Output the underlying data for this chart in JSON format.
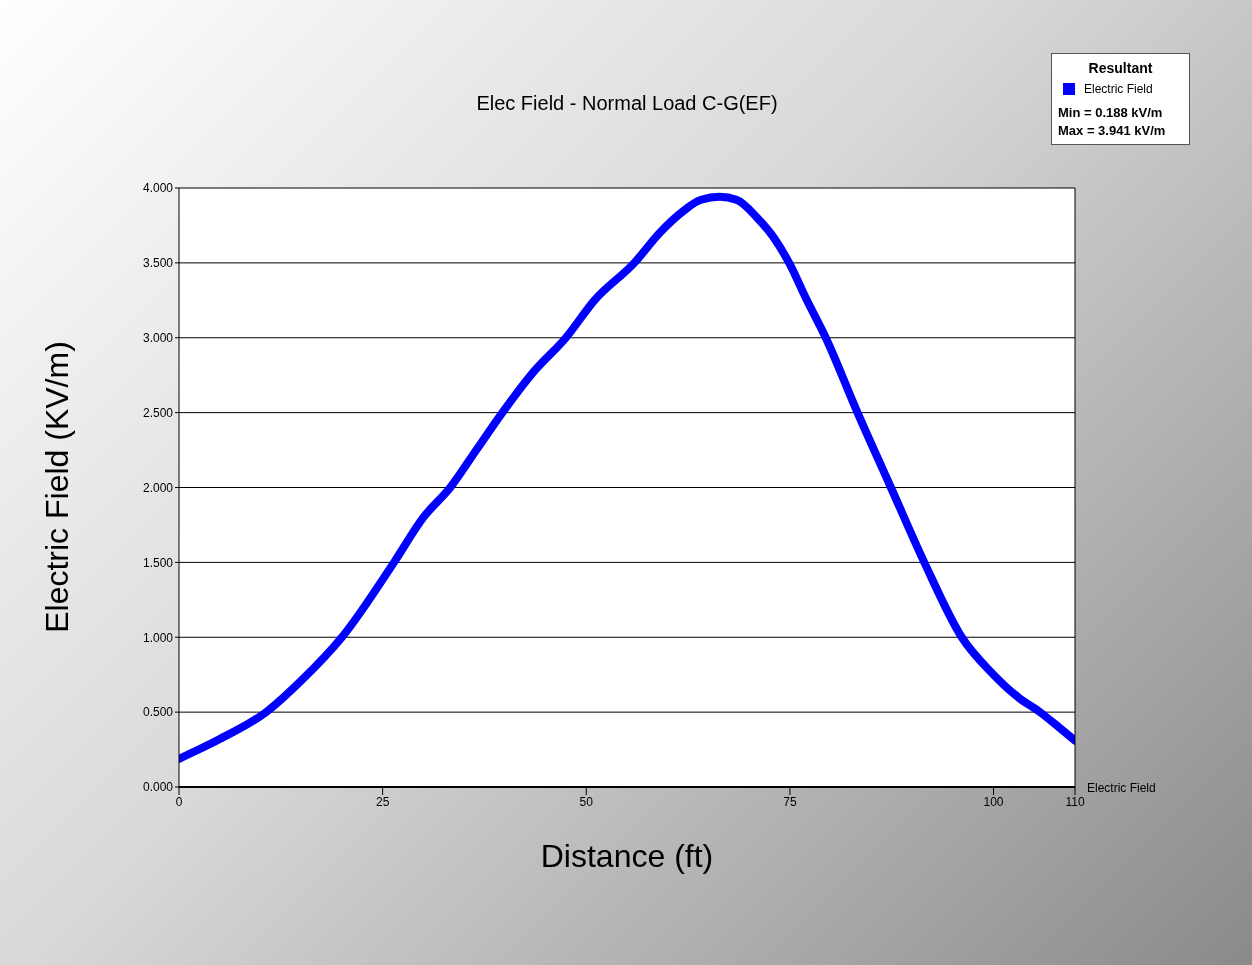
{
  "chart_data": {
    "type": "line",
    "title": "Elec Field - Normal Load C-G(EF)",
    "xlabel": "Distance (ft)",
    "ylabel": "Electric Field (KV/m)",
    "legend_title": "Resultant",
    "legend": "top right",
    "grid": "y",
    "marker": "none",
    "line_style": "solid",
    "x": [
      0,
      5,
      10.7,
      15,
      20,
      26.4,
      30,
      33.3,
      36.5,
      39.7,
      43.5,
      47.5,
      51,
      55.9,
      59,
      62,
      64,
      66.4,
      68.5,
      71,
      73,
      75,
      77,
      79.4,
      83.3,
      87.4,
      91.5,
      96.1,
      100,
      103,
      105.7,
      108,
      110
    ],
    "series": [
      {
        "name": "Electric Field",
        "color": "#0000ff",
        "values": [
          0.188,
          0.32,
          0.5,
          0.71,
          1.0,
          1.5,
          1.8,
          2.0,
          2.25,
          2.5,
          2.77,
          3.0,
          3.25,
          3.5,
          3.7,
          3.85,
          3.92,
          3.941,
          3.92,
          3.8,
          3.67,
          3.49,
          3.26,
          3.0,
          2.5,
          2.0,
          1.5,
          1.0,
          0.75,
          0.6,
          0.5,
          0.4,
          0.31
        ]
      }
    ],
    "xlim": [
      0,
      110
    ],
    "xticks": [
      0,
      25,
      50,
      75,
      100,
      110
    ],
    "ylim": [
      0,
      4
    ],
    "yticks": [
      {
        "value": 0,
        "label": "0.000"
      },
      {
        "value": 0.5,
        "label": "0.500"
      },
      {
        "value": 1,
        "label": "1.000"
      },
      {
        "value": 1.5,
        "label": "1.500"
      },
      {
        "value": 2,
        "label": "2.000"
      },
      {
        "value": 2.5,
        "label": "2.500"
      },
      {
        "value": 3,
        "label": "3.000"
      },
      {
        "value": 3.5,
        "label": "3.500"
      },
      {
        "value": 4,
        "label": "4.000"
      }
    ],
    "annotations": [
      "Min = 0.188 kV/m",
      "Max = 3.941 kV/m",
      "Electric Field"
    ]
  }
}
